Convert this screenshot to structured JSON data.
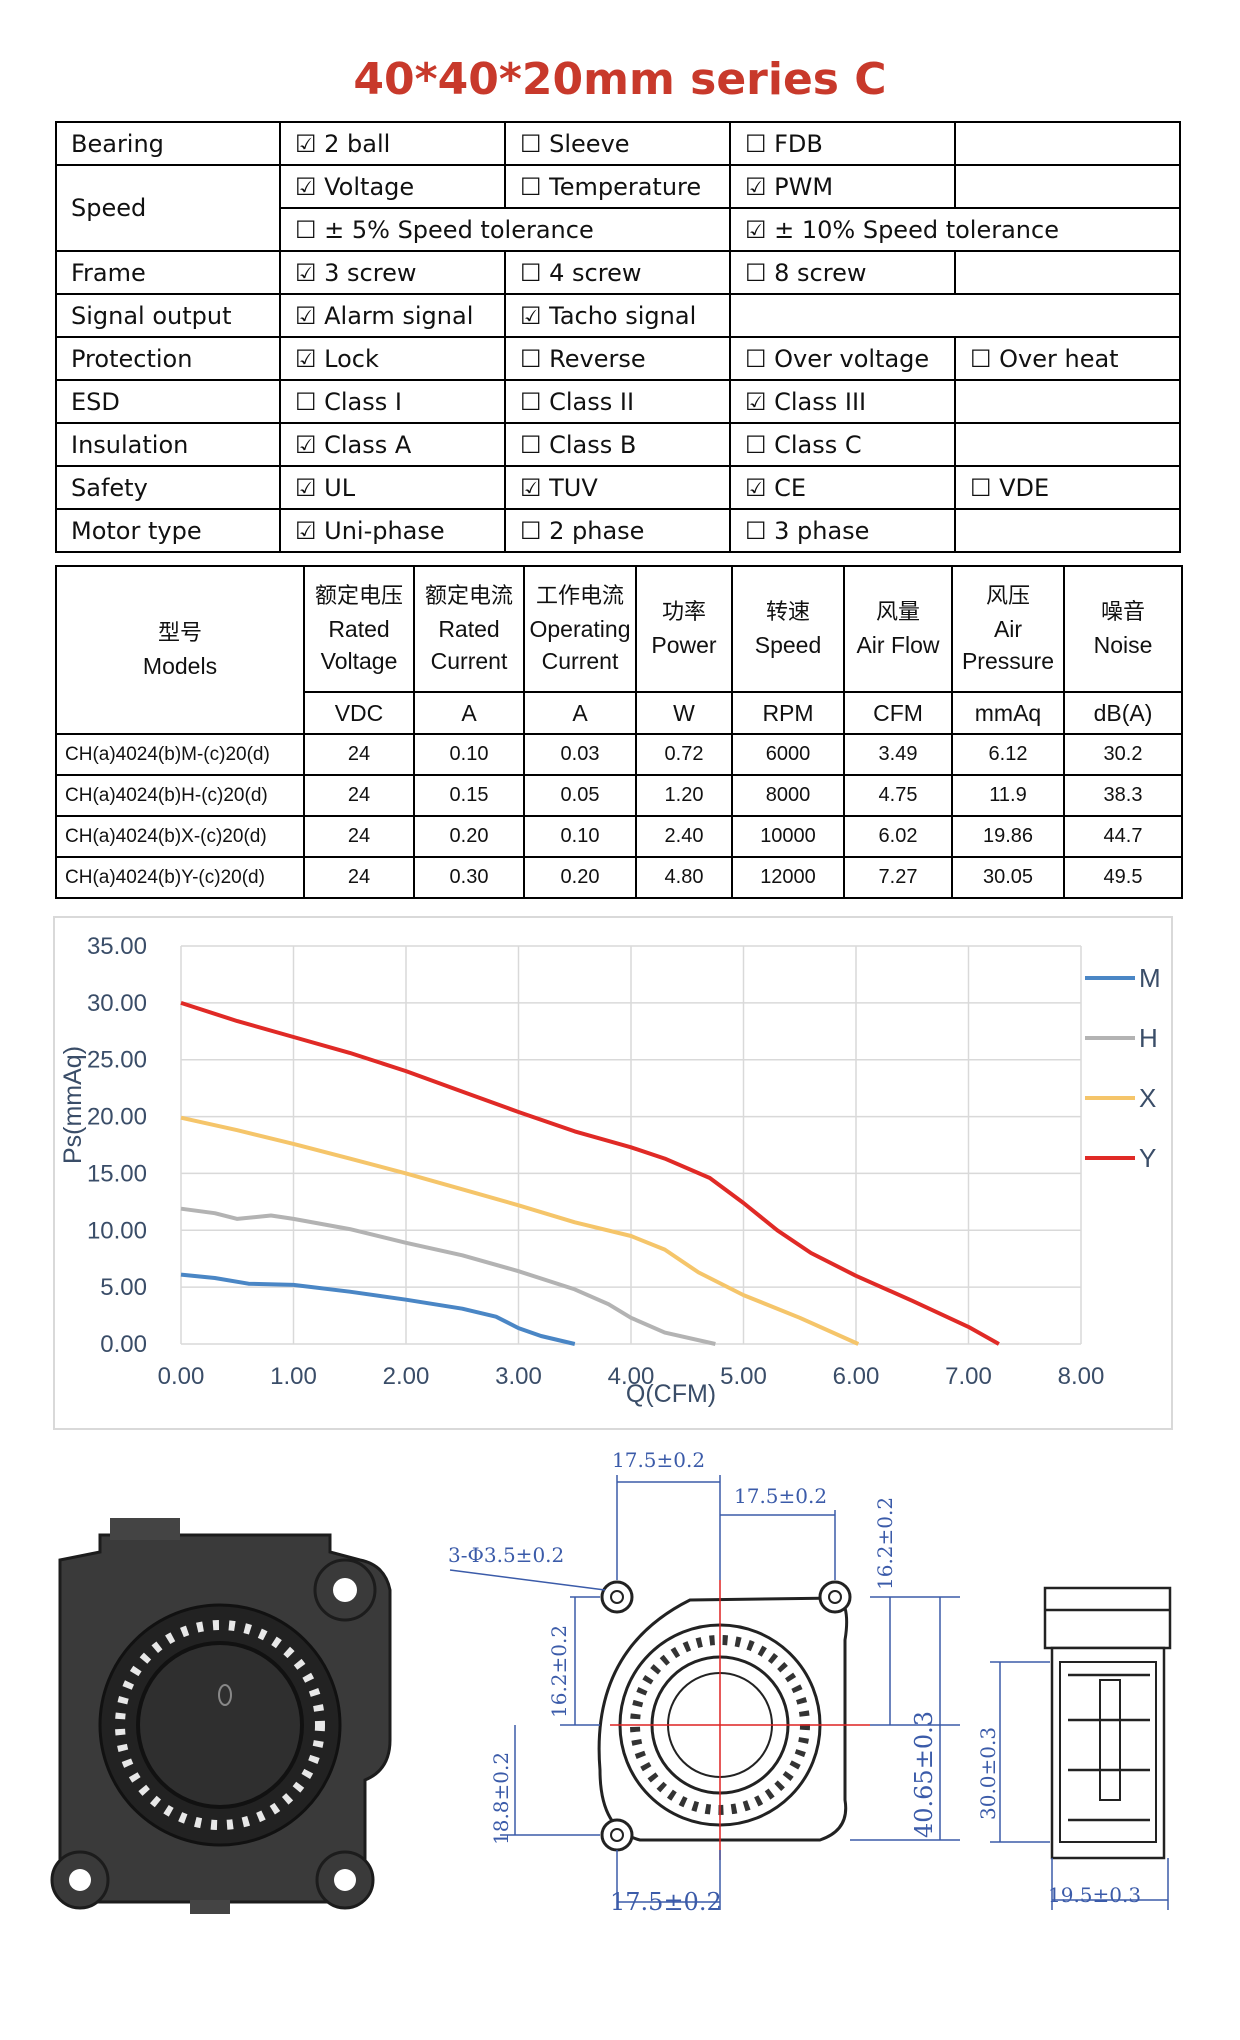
{
  "title": "40*40*20mm series C",
  "features": {
    "bearing": {
      "label": "Bearing",
      "options": [
        "☑ 2 ball",
        "☐ Sleeve",
        "☐ FDB"
      ]
    },
    "speed": {
      "label": "Speed",
      "options": [
        "☑ Voltage",
        "☐ Temperature",
        "☑ PWM"
      ],
      "tolerance": [
        "☐  ± 5% Speed tolerance",
        "☑  ± 10% Speed tolerance"
      ]
    },
    "frame": {
      "label": "Frame",
      "options": [
        "☑ 3 screw",
        "☐ 4 screw",
        "☐ 8 screw"
      ]
    },
    "signal": {
      "label": "Signal output",
      "options": [
        "☑ Alarm signal",
        "☑ Tacho signal"
      ]
    },
    "protection": {
      "label": "Protection",
      "options": [
        "☑ Lock",
        "☐ Reverse",
        "☐ Over voltage",
        "☐ Over heat"
      ]
    },
    "esd": {
      "label": "ESD",
      "options": [
        "☐ Class I",
        "☐ Class II",
        "☑ Class III"
      ]
    },
    "insulation": {
      "label": "Insulation",
      "options": [
        "☑ Class A",
        "☐ Class B",
        "☐ Class C"
      ]
    },
    "safety": {
      "label": "Safety",
      "options": [
        "☑ UL",
        "☑ TUV",
        "☑ CE",
        "☐ VDE"
      ]
    },
    "motor": {
      "label": "Motor type",
      "options": [
        "☑ Uni-phase",
        "☐ 2 phase",
        "☐ 3 phase"
      ]
    }
  },
  "spec": {
    "headers": [
      {
        "zh": "型号",
        "en": "Models"
      },
      {
        "zh": "额定电压",
        "en1": "Rated",
        "en2": "Voltage"
      },
      {
        "zh": "额定电流",
        "en1": "Rated",
        "en2": "Current"
      },
      {
        "zh": "工作电流",
        "en1": "Operating",
        "en2": "Current"
      },
      {
        "zh": "功率",
        "en": "Power"
      },
      {
        "zh": "转速",
        "en": "Speed"
      },
      {
        "zh": "风量",
        "en": "Air Flow"
      },
      {
        "zh": "风压",
        "en1": "Air",
        "en2": "Pressure"
      },
      {
        "zh": "噪音",
        "en": "Noise"
      }
    ],
    "units": [
      "VDC",
      "A",
      "A",
      "W",
      "RPM",
      "CFM",
      "mmAq",
      "dB(A)"
    ],
    "rows": [
      [
        "CH(a)4024(b)M-(c)20(d)",
        "24",
        "0.10",
        "0.03",
        "0.72",
        "6000",
        "3.49",
        "6.12",
        "30.2"
      ],
      [
        "CH(a)4024(b)H-(c)20(d)",
        "24",
        "0.15",
        "0.05",
        "1.20",
        "8000",
        "4.75",
        "11.9",
        "38.3"
      ],
      [
        "CH(a)4024(b)X-(c)20(d)",
        "24",
        "0.20",
        "0.10",
        "2.40",
        "10000",
        "6.02",
        "19.86",
        "44.7"
      ],
      [
        "CH(a)4024(b)Y-(c)20(d)",
        "24",
        "0.30",
        "0.20",
        "4.80",
        "12000",
        "7.27",
        "30.05",
        "49.5"
      ]
    ]
  },
  "chart_data": {
    "type": "line",
    "xlabel": "Q(CFM)",
    "ylabel": "Ps(mmAq)",
    "xlim": [
      0,
      8
    ],
    "ylim": [
      0,
      35
    ],
    "xticks": [
      "0.00",
      "1.00",
      "2.00",
      "3.00",
      "4.00",
      "5.00",
      "6.00",
      "7.00",
      "8.00"
    ],
    "yticks": [
      "0.00",
      "5.00",
      "10.00",
      "15.00",
      "20.00",
      "25.00",
      "30.00",
      "35.00"
    ],
    "grid": true,
    "legend": "right",
    "series": [
      {
        "name": "M",
        "color": "#4a86c5",
        "points": [
          [
            0,
            6.1
          ],
          [
            0.3,
            5.8
          ],
          [
            0.6,
            5.3
          ],
          [
            1.0,
            5.2
          ],
          [
            1.5,
            4.6
          ],
          [
            2.0,
            3.9
          ],
          [
            2.5,
            3.1
          ],
          [
            2.8,
            2.4
          ],
          [
            3.0,
            1.4
          ],
          [
            3.2,
            0.7
          ],
          [
            3.5,
            0.0
          ]
        ]
      },
      {
        "name": "H",
        "color": "#b3b3b3",
        "points": [
          [
            0,
            11.9
          ],
          [
            0.3,
            11.5
          ],
          [
            0.5,
            11.0
          ],
          [
            0.8,
            11.3
          ],
          [
            1.0,
            11.0
          ],
          [
            1.5,
            10.1
          ],
          [
            2.0,
            8.9
          ],
          [
            2.5,
            7.8
          ],
          [
            3.0,
            6.4
          ],
          [
            3.5,
            4.8
          ],
          [
            3.8,
            3.5
          ],
          [
            4.0,
            2.3
          ],
          [
            4.3,
            1.0
          ],
          [
            4.75,
            0.0
          ]
        ]
      },
      {
        "name": "X",
        "color": "#f5c56a",
        "points": [
          [
            0,
            19.9
          ],
          [
            0.5,
            18.8
          ],
          [
            1.0,
            17.6
          ],
          [
            1.5,
            16.3
          ],
          [
            2.0,
            15.0
          ],
          [
            2.5,
            13.6
          ],
          [
            3.0,
            12.2
          ],
          [
            3.5,
            10.7
          ],
          [
            4.0,
            9.5
          ],
          [
            4.3,
            8.3
          ],
          [
            4.6,
            6.3
          ],
          [
            5.0,
            4.3
          ],
          [
            5.5,
            2.3
          ],
          [
            6.02,
            0.0
          ]
        ]
      },
      {
        "name": "Y",
        "color": "#e02a26",
        "points": [
          [
            0,
            30.0
          ],
          [
            0.5,
            28.4
          ],
          [
            1.0,
            27.0
          ],
          [
            1.5,
            25.6
          ],
          [
            2.0,
            24.0
          ],
          [
            2.5,
            22.2
          ],
          [
            3.0,
            20.4
          ],
          [
            3.5,
            18.7
          ],
          [
            4.0,
            17.3
          ],
          [
            4.3,
            16.3
          ],
          [
            4.7,
            14.6
          ],
          [
            5.0,
            12.4
          ],
          [
            5.3,
            10.0
          ],
          [
            5.6,
            8.0
          ],
          [
            6.0,
            6.0
          ],
          [
            6.5,
            3.8
          ],
          [
            7.0,
            1.5
          ],
          [
            7.27,
            0.0
          ]
        ]
      }
    ]
  },
  "drawing": {
    "dims": [
      "17.5±0.2",
      "17.5±0.2",
      "3-Φ3.5±0.2",
      "16.2±0.2",
      "16.2±0.2",
      "40.65±0.3",
      "18.8±0.2",
      "17.5±0.2",
      "30.0±0.3",
      "19.5±0.3"
    ]
  }
}
